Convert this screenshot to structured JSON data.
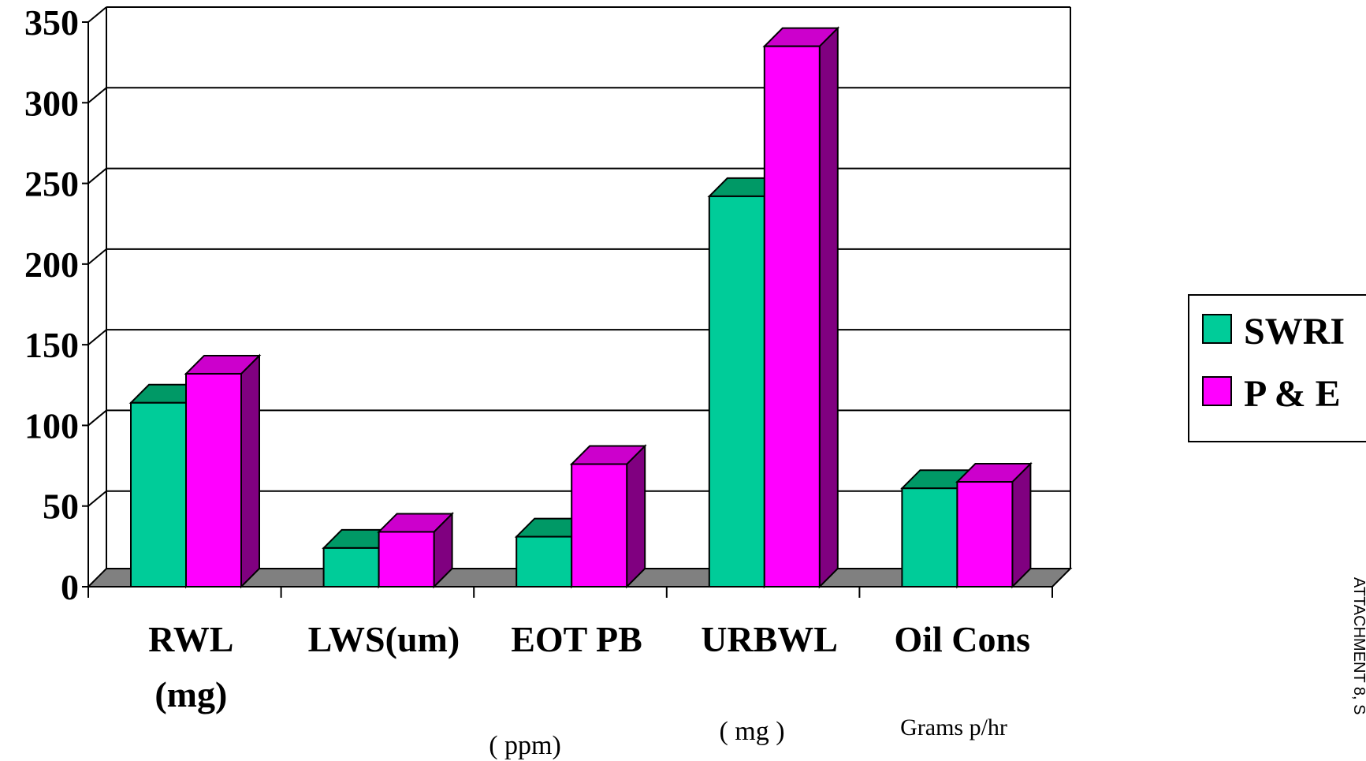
{
  "chart_data": {
    "type": "bar",
    "title": "",
    "xlabel": "",
    "ylabel": "",
    "ylim": [
      0,
      350
    ],
    "yticks": [
      0,
      50,
      100,
      150,
      200,
      250,
      300,
      350
    ],
    "grid": true,
    "categories": [
      {
        "label_line1": "RWL",
        "label_line2": "(mg)",
        "unit": ""
      },
      {
        "label_line1": "LWS(um)",
        "label_line2": "",
        "unit": ""
      },
      {
        "label_line1": "EOT PB",
        "label_line2": "",
        "unit": "( ppm)"
      },
      {
        "label_line1": "URBWL",
        "label_line2": "",
        "unit": "( mg )"
      },
      {
        "label_line1": "Oil Cons",
        "label_line2": "",
        "unit": "Grams p/hr"
      }
    ],
    "series": [
      {
        "name": "SWRI",
        "color": "#00cc99",
        "top_color": "#009966",
        "values": [
          114,
          24,
          31,
          242,
          61
        ]
      },
      {
        "name": "P & E",
        "color": "#ff00ff",
        "top_color": "#cc00cc",
        "side_color": "#800080",
        "values": [
          132,
          34,
          76,
          335,
          65
        ]
      }
    ],
    "legend_position": "right"
  },
  "side_text": "ATTACHMENT 8, S"
}
